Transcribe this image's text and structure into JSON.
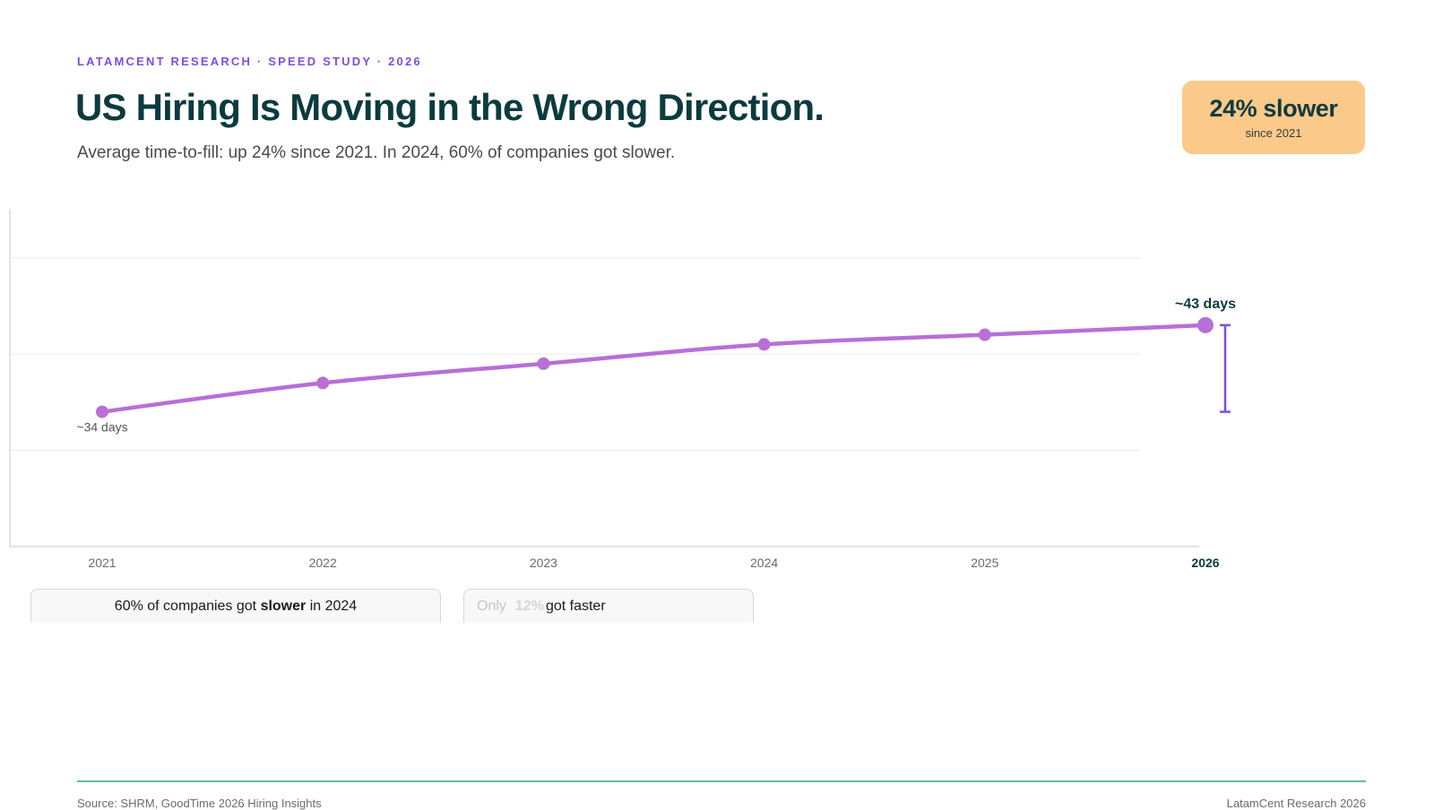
{
  "header": {
    "eyebrow": "LATAMCENT RESEARCH · SPEED STUDY · 2026",
    "title": "US Hiring Is Moving in the Wrong Direction.",
    "subtitle": "Average time-to-fill: up 24% since 2021. In 2024, 60% of companies got slower."
  },
  "badge": {
    "value": "24% slower",
    "sub": "since 2021"
  },
  "chart_data": {
    "type": "line",
    "title": "",
    "xlabel": "",
    "ylabel": "",
    "x": [
      "2021",
      "2022",
      "2023",
      "2024",
      "2025",
      "2026"
    ],
    "x_numeric": [
      2021,
      2022,
      2023,
      2024,
      2025,
      2026
    ],
    "values": [
      34,
      37,
      39,
      41,
      42,
      43
    ],
    "ylim": [
      20,
      55
    ],
    "grid": true,
    "line_color": "#b86fd6",
    "bracket_color": "#7b4fe0",
    "annotations": {
      "start": "~34 days",
      "end": "~43 days"
    }
  },
  "callouts": {
    "first": {
      "pre": "60% of companies got ",
      "bold": "slower",
      "post": " in 2024"
    },
    "second": {
      "pre": "Only",
      "highlight": "12%",
      "post": "got faster"
    }
  },
  "footer": {
    "source": "Source: SHRM, GoodTime 2026 Hiring Insights",
    "brand": "LatamCent Research 2026"
  }
}
